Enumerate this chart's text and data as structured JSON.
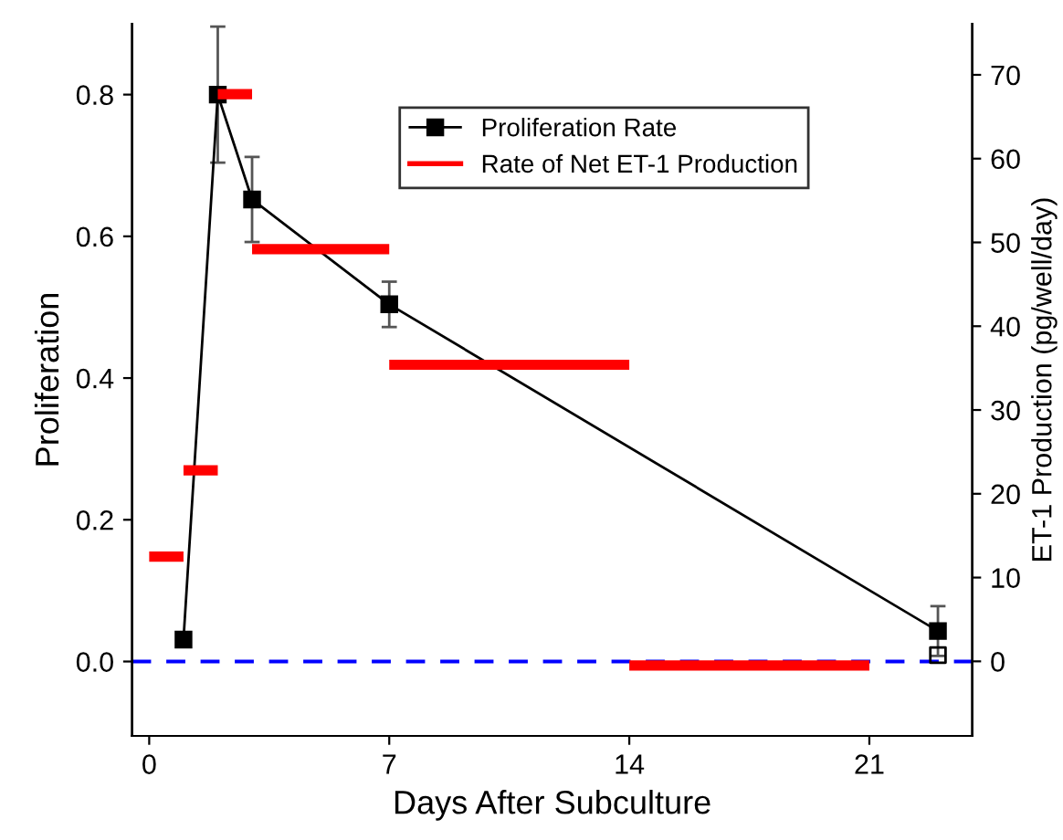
{
  "chart_data": {
    "type": "line",
    "xlabel": "Days After Subculture",
    "ylabel": "Proliferation",
    "y2label": "ET-1 Production (pg/well/day)",
    "xlim": [
      -0.5,
      24
    ],
    "xticks": [
      0,
      7,
      14,
      21
    ],
    "ylim": [
      -0.105,
      0.9
    ],
    "yticks": [
      {
        "value": 0,
        "label": "0.0"
      },
      0.2,
      0.4,
      0.6,
      0.8
    ],
    "y2lim": [
      -8.9,
      76.1
    ],
    "y2ticks": [
      0,
      10,
      20,
      30,
      40,
      50,
      60,
      70
    ],
    "legend": "top right",
    "grid": false,
    "ref_lines": [
      {
        "axis": "y",
        "value": 0,
        "color": "#0000ff",
        "line_style": "dashed"
      }
    ],
    "series": [
      {
        "name": "Proliferation Rate",
        "marker": "square",
        "color": "#000000",
        "x": [
          1,
          2,
          3,
          7,
          23
        ],
        "values": [
          0.031,
          0.8,
          0.652,
          0.504,
          0.043
        ],
        "errors": [
          null,
          0.096,
          0.06,
          0.032,
          0.035
        ]
      },
      {
        "type": "scatter",
        "marker": "square",
        "color": "#000000",
        "x": [
          23
        ],
        "values": [
          0.009
        ]
      },
      {
        "name": "Rate of Net ET-1 Production",
        "type": "line",
        "marker": "none",
        "axis": "y2",
        "color": "#ff0000",
        "x": [
          0,
          1
        ],
        "values": [
          12.5,
          12.5
        ]
      },
      {
        "type": "line",
        "marker": "none",
        "axis": "y2",
        "color": "#ff0000",
        "x": [
          1,
          2
        ],
        "values": [
          22.8,
          22.8
        ]
      },
      {
        "type": "line",
        "marker": "none",
        "axis": "y2",
        "color": "#ff0000",
        "x": [
          2,
          3
        ],
        "values": [
          67.7,
          67.7
        ]
      },
      {
        "type": "line",
        "marker": "none",
        "axis": "y2",
        "color": "#ff0000",
        "x": [
          3,
          7
        ],
        "values": [
          49.2,
          49.2
        ]
      },
      {
        "type": "line",
        "marker": "none",
        "axis": "y2",
        "color": "#ff0000",
        "x": [
          7,
          14
        ],
        "values": [
          35.4,
          35.4
        ]
      },
      {
        "type": "line",
        "marker": "none",
        "axis": "y2",
        "color": "#ff0000",
        "x": [
          14,
          21
        ],
        "values": [
          -0.5,
          -0.5
        ]
      }
    ]
  }
}
